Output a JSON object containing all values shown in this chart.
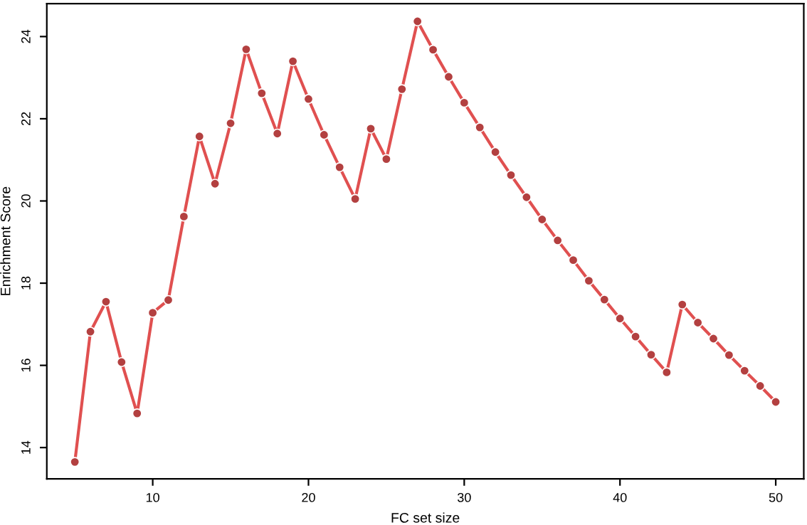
{
  "chart_data": {
    "type": "line",
    "xlabel": "FC set size",
    "ylabel": "Enrichment Score",
    "x": [
      5,
      6,
      7,
      8,
      9,
      10,
      11,
      12,
      13,
      14,
      15,
      16,
      17,
      18,
      19,
      20,
      21,
      22,
      23,
      24,
      25,
      26,
      27,
      28,
      29,
      30,
      31,
      32,
      33,
      34,
      35,
      36,
      37,
      38,
      39,
      40,
      41,
      42,
      43,
      44,
      45,
      46,
      47,
      48,
      49,
      50
    ],
    "series": [
      {
        "color": "#e05050",
        "values": [
          13.65,
          16.82,
          17.55,
          16.08,
          14.83,
          17.28,
          17.59,
          19.62,
          21.57,
          20.42,
          21.89,
          23.69,
          22.62,
          21.64,
          23.4,
          22.48,
          21.61,
          20.82,
          20.05,
          21.76,
          21.02,
          22.72,
          24.37,
          23.68,
          23.02,
          22.39,
          21.79,
          21.19,
          20.63,
          20.09,
          19.55,
          19.04,
          18.56,
          18.06,
          17.6,
          17.14,
          16.7,
          16.26,
          15.83,
          17.48,
          17.04,
          16.65,
          16.25,
          15.87,
          15.5,
          15.11
        ]
      }
    ],
    "marker": "circle",
    "line_style": "solid",
    "xlim": [
      3.2,
      51.8
    ],
    "ylim": [
      13.24,
      24.8
    ],
    "xticks": [
      10,
      20,
      30,
      40,
      50
    ],
    "yticks": [
      14,
      16,
      18,
      20,
      22,
      24
    ],
    "grid": false,
    "legend": false
  }
}
